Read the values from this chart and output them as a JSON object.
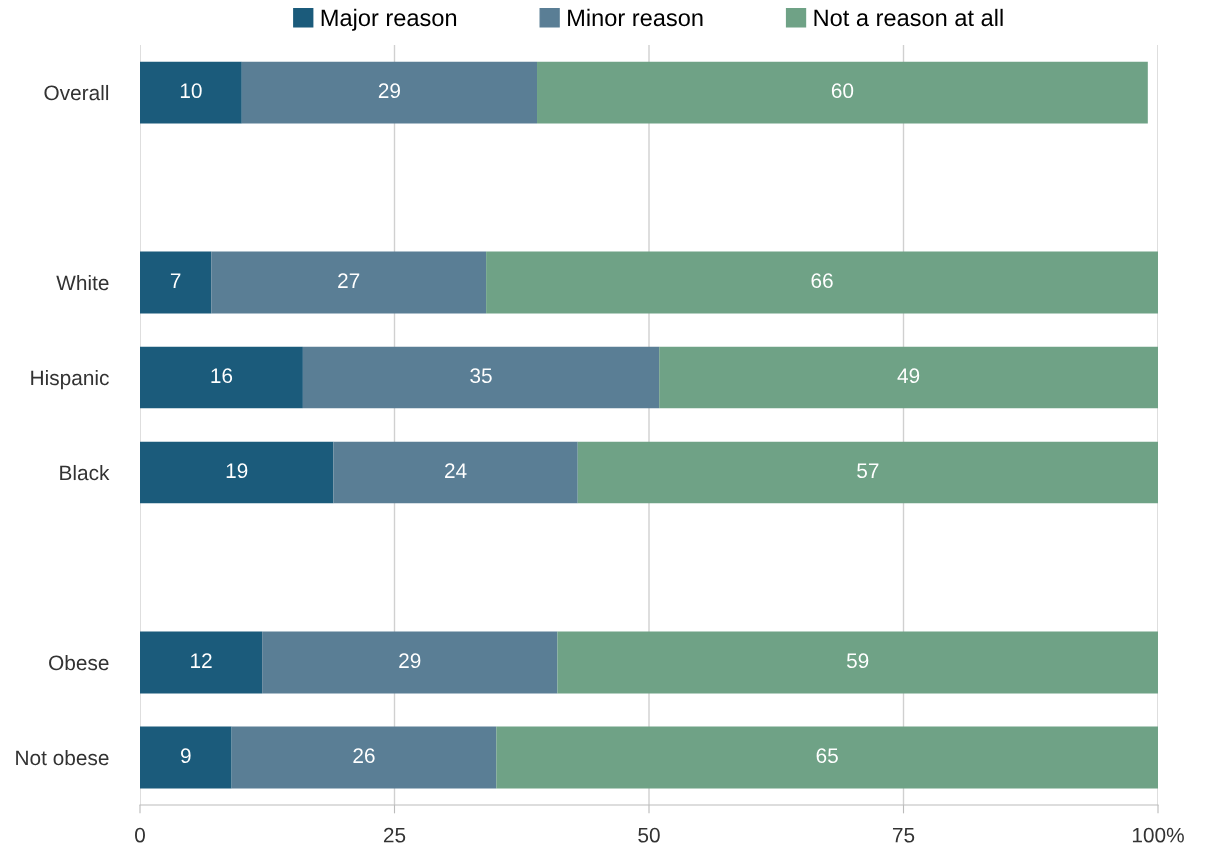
{
  "chart_data": {
    "type": "bar",
    "orientation": "horizontal",
    "stacked": true,
    "data_labels": true,
    "grid": "x",
    "legend": "top",
    "categories": [
      "Overall",
      null,
      "White",
      "Hispanic",
      "Black",
      null,
      "Obese",
      "Not obese"
    ],
    "series": [
      {
        "name": "Major reason",
        "color": "#1b5b7b",
        "values": [
          10,
          null,
          7,
          16,
          19,
          null,
          12,
          9
        ]
      },
      {
        "name": "Minor reason",
        "color": "#5a7e95",
        "values": [
          29,
          null,
          27,
          35,
          24,
          null,
          29,
          26
        ]
      },
      {
        "name": "Not a reason at all",
        "color": "#6fa286",
        "values": [
          60,
          null,
          66,
          49,
          57,
          null,
          59,
          65
        ]
      }
    ],
    "xlim": [
      0,
      100
    ],
    "xticks": [
      0,
      25,
      50,
      75,
      {
        "value": 100,
        "label": "100%"
      }
    ]
  }
}
